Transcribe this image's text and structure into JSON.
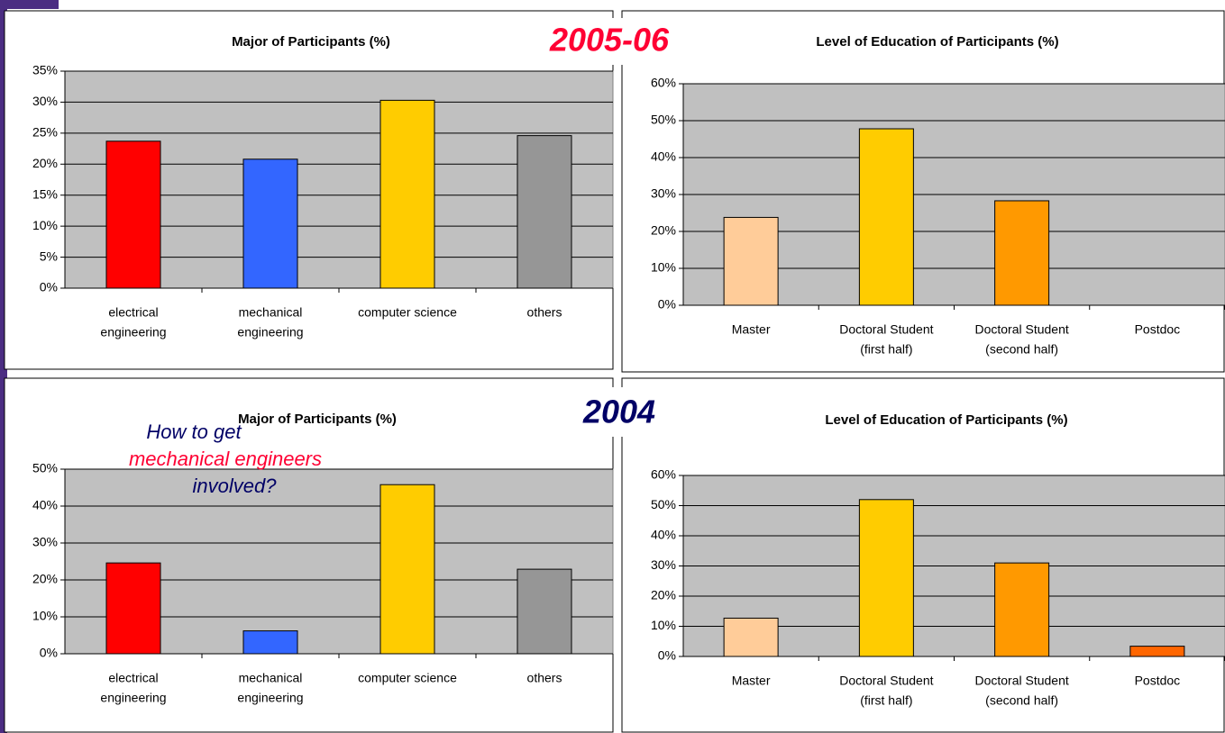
{
  "headings": [
    "2005-06",
    "2004"
  ],
  "chart_data": [
    {
      "type": "bar",
      "title": "Major of Participants (%)",
      "categories": [
        [
          "electrical",
          "engineering"
        ],
        [
          "mechanical",
          "engineering"
        ],
        [
          "computer science"
        ],
        [
          "others"
        ]
      ],
      "values": [
        23.7,
        20.8,
        30.3,
        24.6
      ],
      "colors": [
        "#ff0000",
        "#3366ff",
        "#ffcc00",
        "#969696"
      ],
      "ylim": [
        0,
        35
      ],
      "yticks": [
        {
          "value": 0,
          "label": "0%"
        },
        {
          "value": 5,
          "label": "5%"
        },
        {
          "value": 10,
          "label": "10%"
        },
        {
          "value": 15,
          "label": "15%"
        },
        {
          "value": 20,
          "label": "20%"
        },
        {
          "value": 25,
          "label": "25%"
        },
        {
          "value": 30,
          "label": "30%"
        },
        {
          "value": 35,
          "label": "35%"
        }
      ],
      "grid": true
    },
    {
      "type": "bar",
      "title": "Level of Education of Participants (%)",
      "categories": [
        [
          "Master"
        ],
        [
          "Doctoral Student",
          "(first half)"
        ],
        [
          "Doctoral Student",
          "(second half)"
        ],
        [
          "Postdoc"
        ]
      ],
      "values": [
        23.8,
        47.8,
        28.3,
        0
      ],
      "colors": [
        "#ffcc99",
        "#ffcc00",
        "#ff9900",
        "#ff6600"
      ],
      "ylim": [
        0,
        60
      ],
      "yticks": [
        {
          "value": 0,
          "label": "0%"
        },
        {
          "value": 10,
          "label": "10%"
        },
        {
          "value": 20,
          "label": "20%"
        },
        {
          "value": 30,
          "label": "30%"
        },
        {
          "value": 40,
          "label": "40%"
        },
        {
          "value": 50,
          "label": "50%"
        },
        {
          "value": 60,
          "label": "60%"
        }
      ],
      "grid": true
    },
    {
      "type": "bar",
      "title": "Major of Participants (%)",
      "categories": [
        [
          "electrical",
          "engineering"
        ],
        [
          "mechanical",
          "engineering"
        ],
        [
          "computer science"
        ],
        [
          "others"
        ]
      ],
      "values": [
        24.6,
        6.2,
        45.8,
        22.9
      ],
      "colors": [
        "#ff0000",
        "#3366ff",
        "#ffcc00",
        "#969696"
      ],
      "ylim": [
        0,
        50
      ],
      "yticks": [
        {
          "value": 0,
          "label": "0%"
        },
        {
          "value": 10,
          "label": "10%"
        },
        {
          "value": 20,
          "label": "20%"
        },
        {
          "value": 30,
          "label": "30%"
        },
        {
          "value": 40,
          "label": "40%"
        },
        {
          "value": 50,
          "label": "50%"
        }
      ],
      "grid": true,
      "annotations": [
        "How to get",
        "mechanical engineers",
        "involved?"
      ]
    },
    {
      "type": "bar",
      "title": "Level of Education of Participants (%)",
      "categories": [
        [
          "Master"
        ],
        [
          "Doctoral Student",
          "(first half)"
        ],
        [
          "Doctoral Student",
          "(second half)"
        ],
        [
          "Postdoc"
        ]
      ],
      "values": [
        12.7,
        52,
        31,
        3.4
      ],
      "colors": [
        "#ffcc99",
        "#ffcc00",
        "#ff9900",
        "#ff6600"
      ],
      "ylim": [
        0,
        60
      ],
      "yticks": [
        {
          "value": 0,
          "label": "0%"
        },
        {
          "value": 10,
          "label": "10%"
        },
        {
          "value": 20,
          "label": "20%"
        },
        {
          "value": 30,
          "label": "30%"
        },
        {
          "value": 40,
          "label": "40%"
        },
        {
          "value": 50,
          "label": "50%"
        },
        {
          "value": 60,
          "label": "60%"
        }
      ],
      "grid": true
    }
  ]
}
